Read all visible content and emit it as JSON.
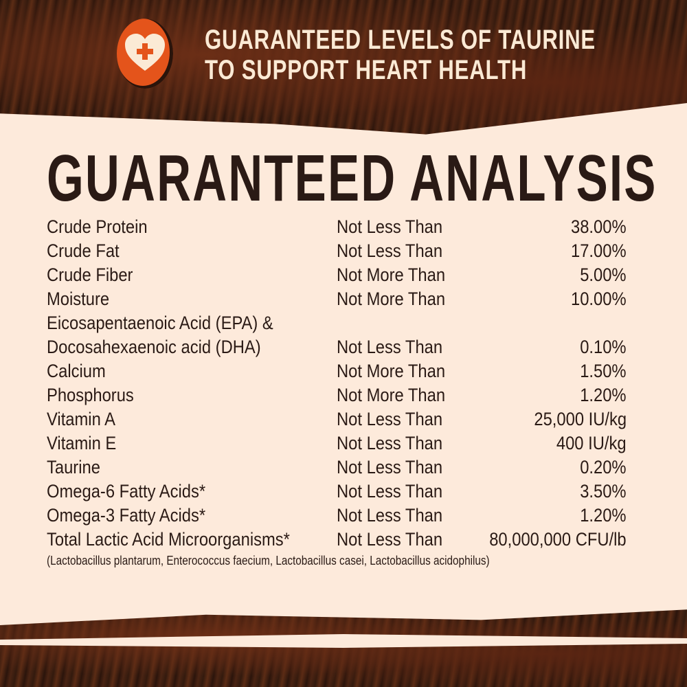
{
  "header": {
    "line1": "GUARANTEED LEVELS OF TAURINE",
    "line2": "TO SUPPORT HEART HEALTH",
    "icon": "heart-plus-icon",
    "badge_color": "#e4541b"
  },
  "title": "GUARANTEED ANALYSIS",
  "rows": [
    {
      "label": "Crude Protein",
      "cond": "Not Less Than",
      "value": "38.00%"
    },
    {
      "label": "Crude Fat",
      "cond": "Not Less Than",
      "value": "17.00%"
    },
    {
      "label": "Crude Fiber",
      "cond": "Not More Than",
      "value": "5.00%"
    },
    {
      "label": "Moisture",
      "cond": "Not More Than",
      "value": "10.00%"
    },
    {
      "label": "Eicosapentaenoic Acid (EPA) &",
      "cond": "",
      "value": ""
    },
    {
      "label": "Docosahexaenoic acid (DHA)",
      "cond": "Not Less Than",
      "value": "0.10%"
    },
    {
      "label": "Calcium",
      "cond": "Not More Than",
      "value": "1.50%"
    },
    {
      "label": "Phosphorus",
      "cond": "Not More Than",
      "value": "1.20%"
    },
    {
      "label": "Vitamin A",
      "cond": "Not Less Than",
      "value": "25,000 IU/kg"
    },
    {
      "label": "Vitamin E",
      "cond": "Not Less Than",
      "value": "400 IU/kg"
    },
    {
      "label": "Taurine",
      "cond": "Not Less Than",
      "value": "0.20%"
    },
    {
      "label": "Omega-6 Fatty Acids*",
      "cond": "Not Less Than",
      "value": "3.50%"
    },
    {
      "label": "Omega-3 Fatty Acids*",
      "cond": "Not Less Than",
      "value": "1.20%"
    },
    {
      "label": "Total Lactic Acid Microorganisms*",
      "cond": "Not Less Than",
      "value": "80,000,000 CFU/lb"
    }
  ],
  "footnote": "(Lactobacillus plantarum, Enterococcus faecium, Lactobacillus casei, Lactobacillus acidophilus)"
}
